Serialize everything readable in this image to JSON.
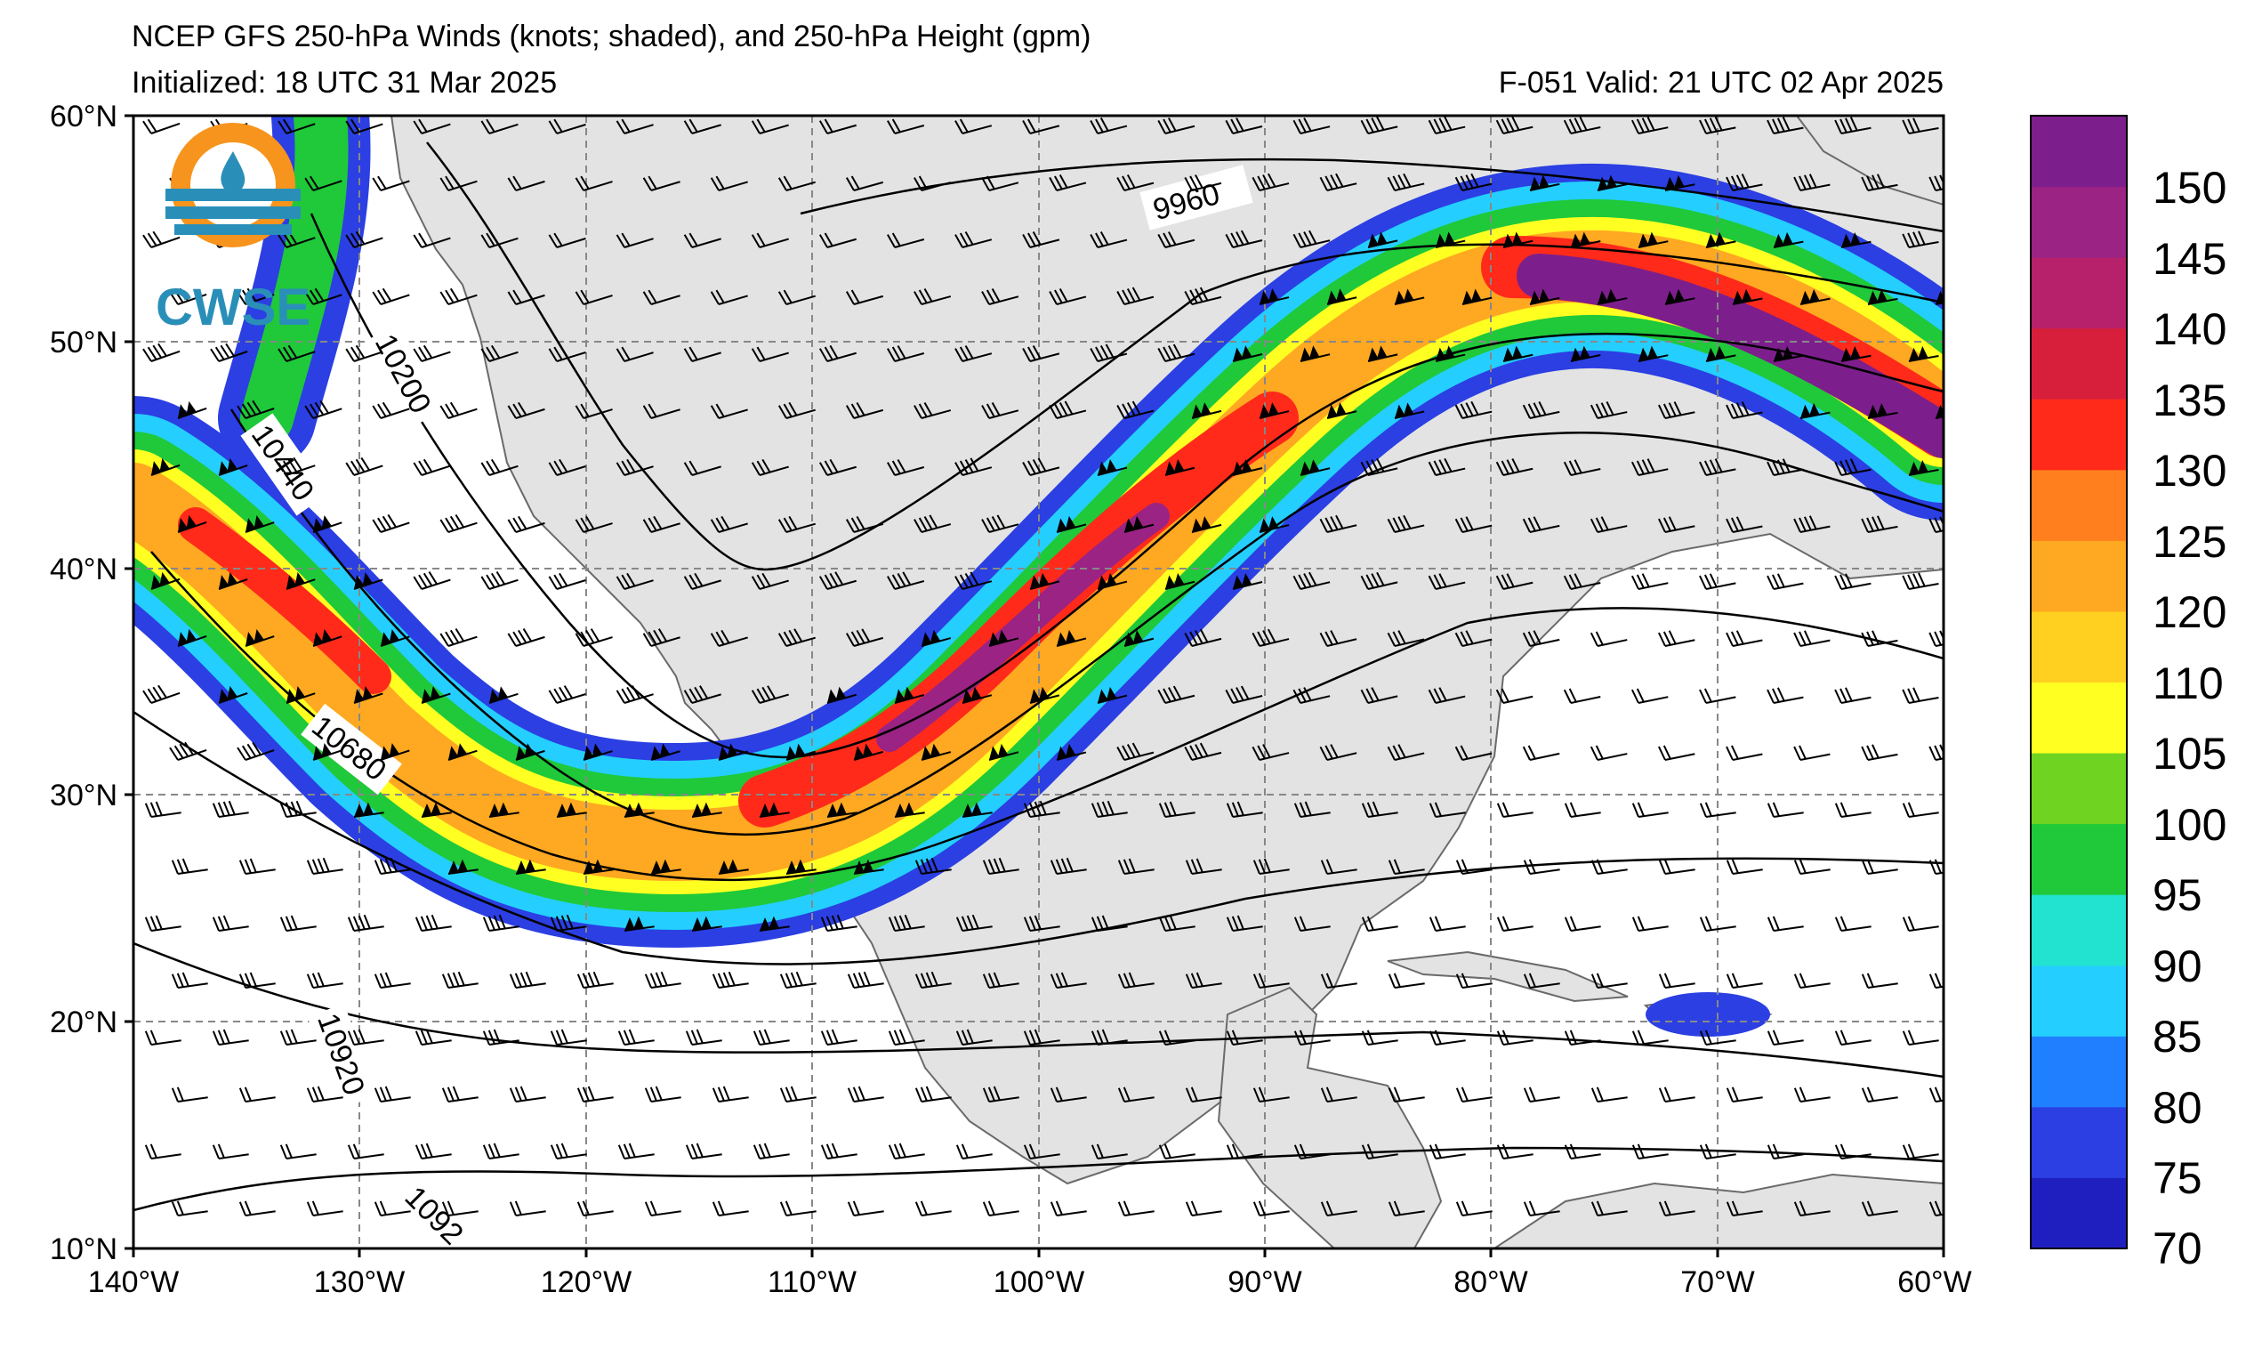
{
  "header": {
    "title": "NCEP GFS 250-hPa Winds (knots; shaded), and 250-hPa Height (gpm)",
    "initialized": "Initialized: 18 UTC 31 Mar 2025",
    "valid": "F-051  Valid: 21 UTC 02 Apr 2025"
  },
  "logo": {
    "text": "CWSE"
  },
  "map": {
    "lat_labels": [
      "60°N",
      "50°N",
      "40°N",
      "30°N",
      "20°N",
      "10°N"
    ],
    "lon_labels": [
      "140°W",
      "130°W",
      "120°W",
      "110°W",
      "100°W",
      "90°W",
      "80°W",
      "70°W",
      "60°W"
    ],
    "lat_range": [
      10,
      60
    ],
    "lon_range": [
      -140,
      -60
    ],
    "contour_labels": [
      "9960",
      "10200",
      "10440",
      "10680",
      "10920",
      "1092"
    ]
  },
  "colorbar": {
    "ticks": [
      "150",
      "145",
      "140",
      "135",
      "130",
      "125",
      "120",
      "110",
      "105",
      "100",
      "95",
      "90",
      "85",
      "80",
      "75",
      "70"
    ],
    "colors": [
      "#1f1fbf",
      "#2b3fe3",
      "#1f7fff",
      "#24cfff",
      "#22e3cf",
      "#1fc93a",
      "#6fd321",
      "#ffff22",
      "#ffd020",
      "#ffa821",
      "#ff7f1f",
      "#ff2a1a",
      "#d71f3b",
      "#b7206a",
      "#9a2383",
      "#7c1f8c"
    ]
  }
}
